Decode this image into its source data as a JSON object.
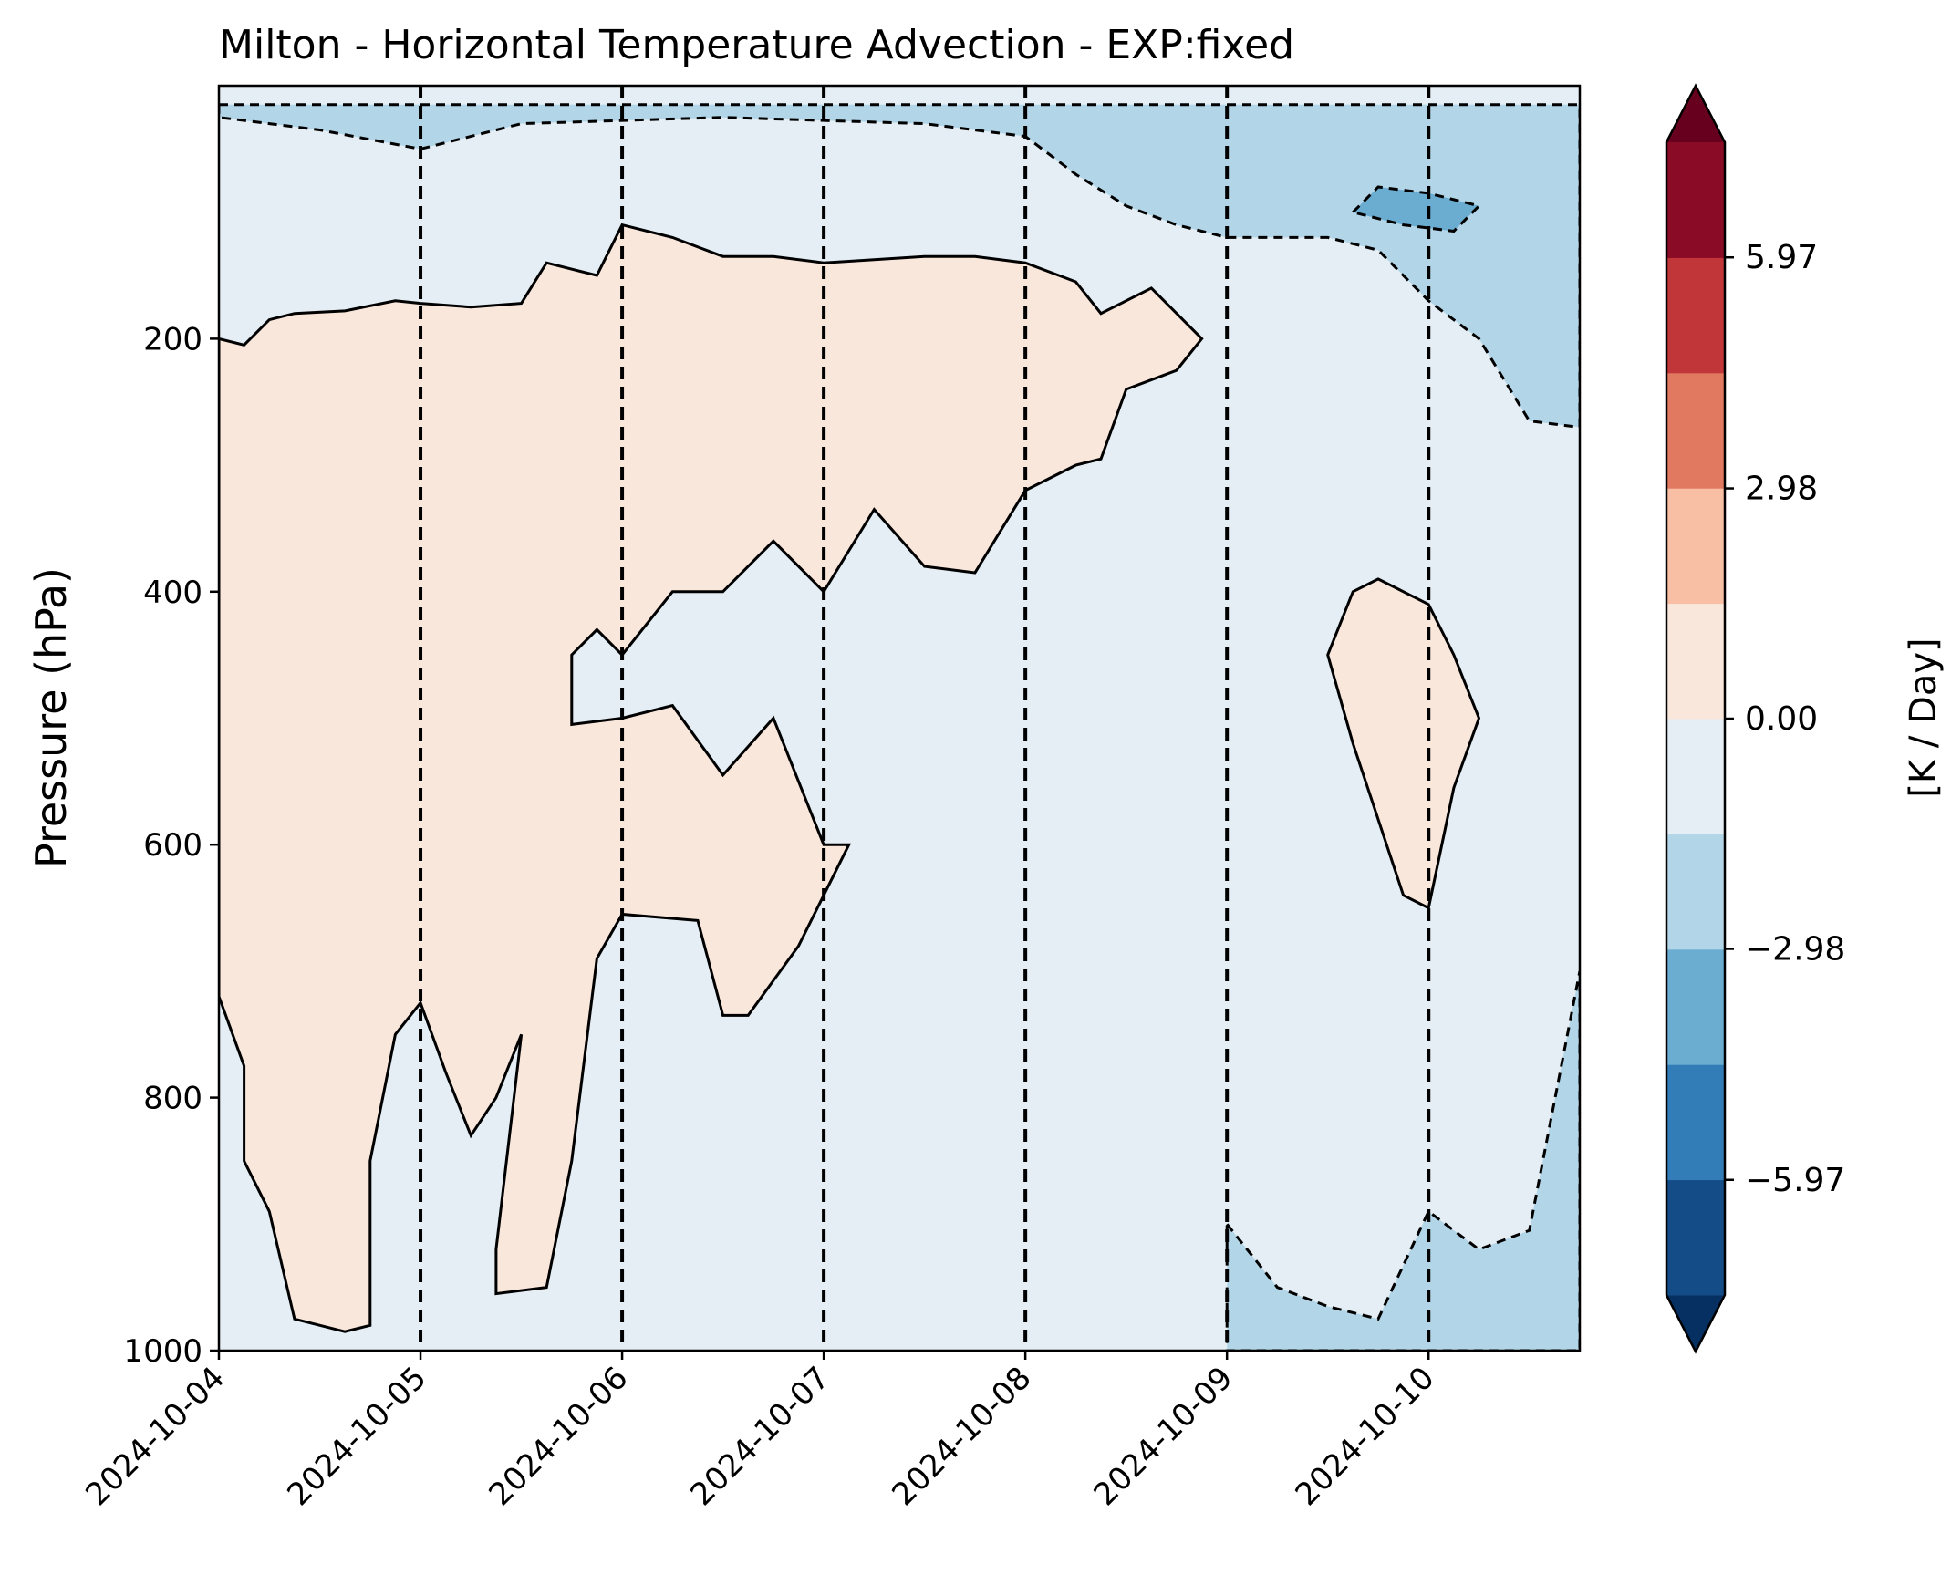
{
  "chart_data": {
    "type": "contour",
    "title": "Milton - Horizontal Temperature Advection - EXP:fixed",
    "xlabel": "",
    "ylabel": "Pressure (hPa)",
    "y_axis_inverted": true,
    "ylim": [
      0,
      1000
    ],
    "y_ticks": [
      200,
      400,
      600,
      800,
      1000
    ],
    "x_start": "2024-10-04",
    "x_end": "2024-10-10 18:00",
    "x_ticks": [
      "2024-10-04",
      "2024-10-05",
      "2024-10-06",
      "2024-10-07",
      "2024-10-08",
      "2024-10-09",
      "2024-10-10"
    ],
    "vertical_dashed_lines_at": [
      "2024-10-05",
      "2024-10-06",
      "2024-10-07",
      "2024-10-08",
      "2024-10-09",
      "2024-10-10"
    ],
    "grid": false,
    "colorbar": {
      "label": "[K / Day]",
      "extend": "both",
      "tick_values": [
        -5.97,
        -2.98,
        0.0,
        2.98,
        5.97
      ],
      "tick_labels": [
        "−5.97",
        "−2.98",
        "0.00",
        "2.98",
        "5.97"
      ],
      "levels": [
        -7.46,
        -5.97,
        -4.48,
        -2.98,
        -1.49,
        0.0,
        1.49,
        2.98,
        4.48,
        5.97,
        7.46
      ],
      "colors": [
        "#053061",
        "#134c87",
        "#327cb7",
        "#6bacd1",
        "#b2d5e7",
        "#e4eef4",
        "#fae7dc",
        "#f8bfa4",
        "#e17860",
        "#c13639",
        "#8a0b25",
        "#67001f"
      ]
    },
    "regions": [
      {
        "level_range": [
          0.0,
          1.49
        ],
        "description": "Main positive advection region",
        "outline": [
          [
            "2024-10-04 00:00",
            200
          ],
          [
            "2024-10-04 03:00",
            205
          ],
          [
            "2024-10-04 06:00",
            185
          ],
          [
            "2024-10-04 09:00",
            180
          ],
          [
            "2024-10-04 15:00",
            178
          ],
          [
            "2024-10-04 21:00",
            170
          ],
          [
            "2024-10-05 00:00",
            172
          ],
          [
            "2024-10-05 06:00",
            175
          ],
          [
            "2024-10-05 12:00",
            172
          ],
          [
            "2024-10-05 15:00",
            140
          ],
          [
            "2024-10-05 21:00",
            150
          ],
          [
            "2024-10-06 00:00",
            110
          ],
          [
            "2024-10-06 06:00",
            120
          ],
          [
            "2024-10-06 12:00",
            135
          ],
          [
            "2024-10-06 18:00",
            135
          ],
          [
            "2024-10-07 00:00",
            140
          ],
          [
            "2024-10-07 12:00",
            135
          ],
          [
            "2024-10-07 18:00",
            135
          ],
          [
            "2024-10-08 00:00",
            140
          ],
          [
            "2024-10-08 06:00",
            155
          ],
          [
            "2024-10-08 09:00",
            180
          ],
          [
            "2024-10-08 15:00",
            160
          ],
          [
            "2024-10-08 21:00",
            200
          ],
          [
            "2024-10-08 18:00",
            225
          ],
          [
            "2024-10-08 12:00",
            240
          ],
          [
            "2024-10-08 09:00",
            295
          ],
          [
            "2024-10-08 06:00",
            300
          ],
          [
            "2024-10-08 00:00",
            320
          ],
          [
            "2024-10-07 18:00",
            385
          ],
          [
            "2024-10-07 12:00",
            380
          ],
          [
            "2024-10-07 06:00",
            335
          ],
          [
            "2024-10-07 00:00",
            400
          ],
          [
            "2024-10-06 18:00",
            360
          ],
          [
            "2024-10-06 12:00",
            400
          ],
          [
            "2024-10-06 06:00",
            400
          ],
          [
            "2024-10-06 00:00",
            450
          ],
          [
            "2024-10-05 21:00",
            430
          ],
          [
            "2024-10-05 18:00",
            450
          ],
          [
            "2024-10-05 18:00",
            505
          ],
          [
            "2024-10-06 00:00",
            500
          ],
          [
            "2024-10-06 06:00",
            490
          ],
          [
            "2024-10-06 12:00",
            545
          ],
          [
            "2024-10-06 18:00",
            500
          ],
          [
            "2024-10-07 00:00",
            600
          ],
          [
            "2024-10-07 03:00",
            600
          ],
          [
            "2024-10-06 21:00",
            680
          ],
          [
            "2024-10-06 15:00",
            735
          ],
          [
            "2024-10-06 12:00",
            735
          ],
          [
            "2024-10-06 09:00",
            660
          ],
          [
            "2024-10-06 00:00",
            655
          ],
          [
            "2024-10-05 21:00",
            690
          ],
          [
            "2024-10-05 18:00",
            850
          ],
          [
            "2024-10-05 15:00",
            950
          ],
          [
            "2024-10-05 09:00",
            955
          ],
          [
            "2024-10-05 09:00",
            920
          ],
          [
            "2024-10-05 12:00",
            750
          ],
          [
            "2024-10-05 09:00",
            800
          ],
          [
            "2024-10-05 06:00",
            830
          ],
          [
            "2024-10-05 03:00",
            780
          ],
          [
            "2024-10-05 00:00",
            725
          ],
          [
            "2024-10-04 21:00",
            750
          ],
          [
            "2024-10-04 18:00",
            850
          ],
          [
            "2024-10-04 18:00",
            980
          ],
          [
            "2024-10-04 15:00",
            985
          ],
          [
            "2024-10-04 09:00",
            975
          ],
          [
            "2024-10-04 06:00",
            890
          ],
          [
            "2024-10-04 03:00",
            850
          ],
          [
            "2024-10-04 03:00",
            775
          ],
          [
            "2024-10-04 00:00",
            720
          ]
        ]
      },
      {
        "level_range": [
          0.0,
          1.49
        ],
        "description": "Isolated positive region near 2024-10-09/10",
        "outline": [
          [
            "2024-10-09 12:00",
            450
          ],
          [
            "2024-10-09 15:00",
            400
          ],
          [
            "2024-10-09 18:00",
            390
          ],
          [
            "2024-10-10 00:00",
            410
          ],
          [
            "2024-10-10 03:00",
            450
          ],
          [
            "2024-10-10 06:00",
            500
          ],
          [
            "2024-10-10 03:00",
            555
          ],
          [
            "2024-10-10 00:00",
            650
          ],
          [
            "2024-10-09 21:00",
            640
          ],
          [
            "2024-10-09 18:00",
            580
          ],
          [
            "2024-10-09 15:00",
            520
          ]
        ]
      },
      {
        "level_range": [
          -2.98,
          -1.49
        ],
        "description": "Near-surface negative region after 2024-10-09",
        "outline": [
          [
            "2024-10-09 00:00",
            900
          ],
          [
            "2024-10-09 06:00",
            950
          ],
          [
            "2024-10-09 12:00",
            965
          ],
          [
            "2024-10-09 18:00",
            975
          ],
          [
            "2024-10-10 00:00",
            890
          ],
          [
            "2024-10-10 06:00",
            920
          ],
          [
            "2024-10-10 12:00",
            905
          ],
          [
            "2024-10-10 18:00",
            700
          ],
          [
            "2024-10-10 18:00",
            1000
          ],
          [
            "2024-10-09 00:00",
            1000
          ]
        ]
      },
      {
        "level_range": [
          -2.98,
          -1.49
        ],
        "description": "Upper-level negative band",
        "outline": [
          [
            "2024-10-04 00:00",
            15
          ],
          [
            "2024-10-10 18:00",
            15
          ],
          [
            "2024-10-10 18:00",
            270
          ],
          [
            "2024-10-10 12:00",
            265
          ],
          [
            "2024-10-10 06:00",
            200
          ],
          [
            "2024-10-10 00:00",
            170
          ],
          [
            "2024-10-09 18:00",
            130
          ],
          [
            "2024-10-09 12:00",
            120
          ],
          [
            "2024-10-09 00:00",
            120
          ],
          [
            "2024-10-08 18:00",
            110
          ],
          [
            "2024-10-08 12:00",
            95
          ],
          [
            "2024-10-08 06:00",
            70
          ],
          [
            "2024-10-08 00:00",
            40
          ],
          [
            "2024-10-07 12:00",
            30
          ],
          [
            "2024-10-06 12:00",
            25
          ],
          [
            "2024-10-05 12:00",
            30
          ],
          [
            "2024-10-05 00:00",
            50
          ],
          [
            "2024-10-04 12:00",
            35
          ],
          [
            "2024-10-04 06:00",
            30
          ],
          [
            "2024-10-04 00:00",
            25
          ]
        ]
      },
      {
        "level_range": [
          -4.48,
          -2.98
        ],
        "description": "Strong negative core near 2024-10-09 18:00",
        "outline": [
          [
            "2024-10-09 15:00",
            100
          ],
          [
            "2024-10-09 18:00",
            80
          ],
          [
            "2024-10-10 00:00",
            85
          ],
          [
            "2024-10-10 06:00",
            95
          ],
          [
            "2024-10-10 03:00",
            115
          ],
          [
            "2024-10-09 21:00",
            110
          ]
        ]
      }
    ]
  }
}
